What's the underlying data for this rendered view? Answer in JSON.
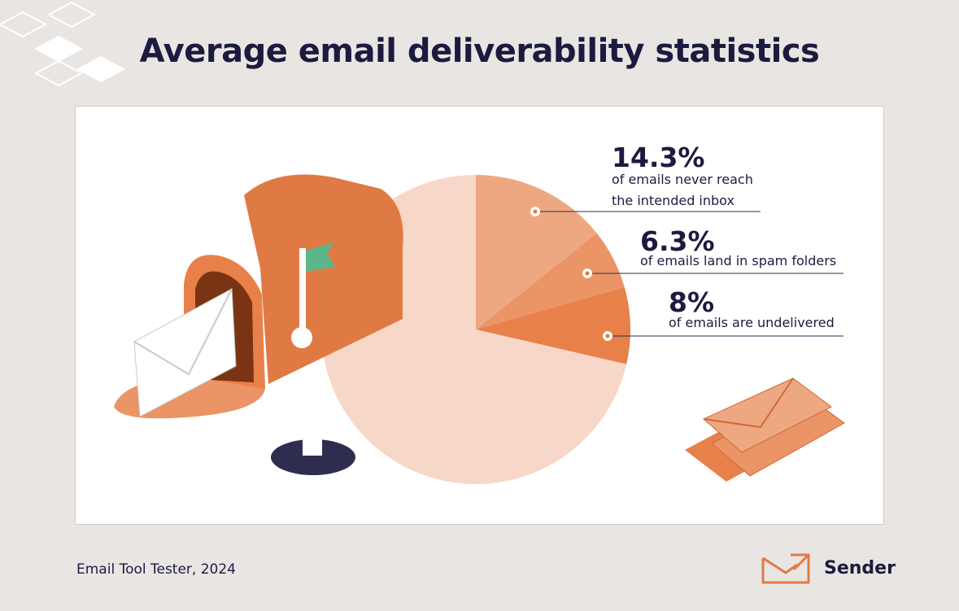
{
  "chart_data": {
    "type": "pie",
    "title": "Average email deliverability statistics",
    "categories": [
      "of emails never reach the intended inbox",
      "of emails land in spam folders",
      "of emails are undelivered",
      null
    ],
    "values": [
      14.3,
      6.3,
      8,
      71.4
    ],
    "value_labels": [
      "14.3%",
      "6.3%",
      "8%",
      null
    ],
    "colors": [
      "#eda882",
      "#eb9466",
      "#e8804a",
      "#f7d7c8"
    ],
    "source": "Email Tool Tester, 2024",
    "brand": "Sender"
  }
}
